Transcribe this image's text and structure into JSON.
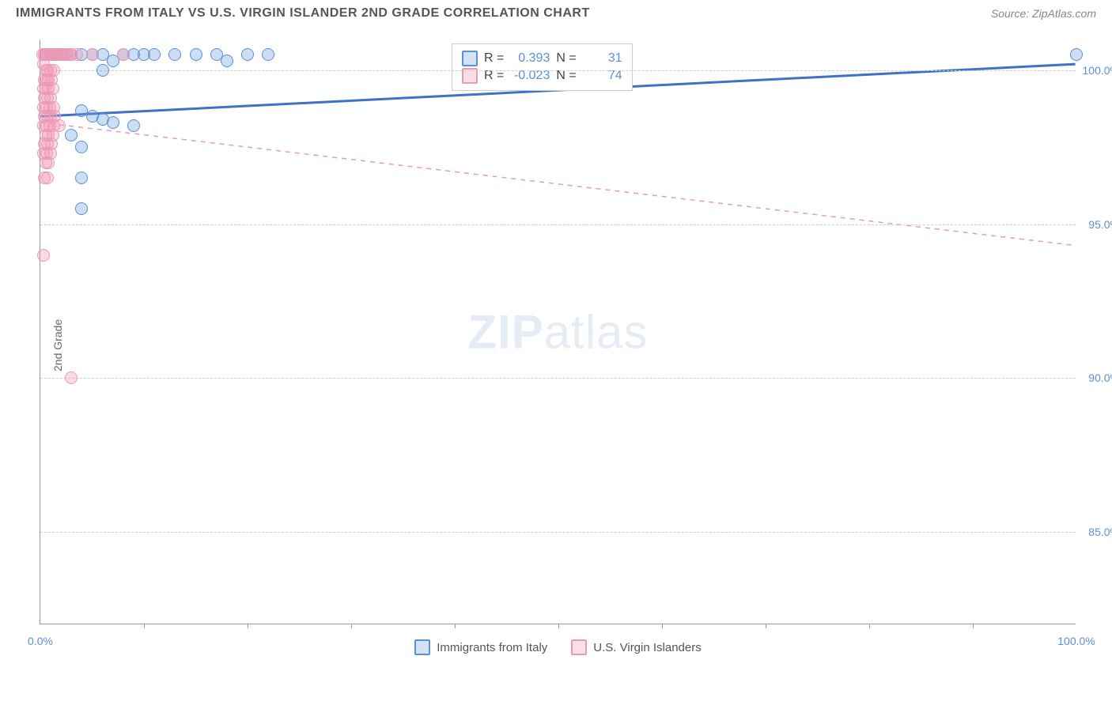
{
  "header": {
    "title": "IMMIGRANTS FROM ITALY VS U.S. VIRGIN ISLANDER 2ND GRADE CORRELATION CHART",
    "source": "Source: ZipAtlas.com"
  },
  "chart": {
    "type": "scatter",
    "ylabel": "2nd Grade",
    "watermark_a": "ZIP",
    "watermark_b": "atlas",
    "background_color": "#ffffff",
    "grid_color": "#cccccc",
    "axis_color": "#999999",
    "xlim": [
      0,
      100
    ],
    "ylim": [
      82,
      101
    ],
    "yticks": [
      {
        "v": 100,
        "label": "100.0%"
      },
      {
        "v": 95,
        "label": "95.0%"
      },
      {
        "v": 90,
        "label": "90.0%"
      },
      {
        "v": 85,
        "label": "85.0%"
      }
    ],
    "xticks_minor": [
      10,
      20,
      30,
      40,
      50,
      60,
      70,
      80,
      90
    ],
    "xtick_labels": [
      {
        "v": 0,
        "label": "0.0%"
      },
      {
        "v": 100,
        "label": "100.0%"
      }
    ],
    "series": [
      {
        "name": "Immigrants from Italy",
        "color_fill": "rgba(108,160,220,0.35)",
        "color_stroke": "#5b8fd6",
        "marker": "circle",
        "marker_size": 16,
        "R": "0.393",
        "N": "31",
        "trend": {
          "x1": 0,
          "y1": 98.5,
          "x2": 100,
          "y2": 100.2,
          "dash": false,
          "stroke": "#3d73c7",
          "width": 3
        },
        "points": [
          [
            0.5,
            100.5
          ],
          [
            1,
            100.5
          ],
          [
            1.5,
            100.5
          ],
          [
            2,
            100.5
          ],
          [
            3,
            100.5
          ],
          [
            4,
            100.5
          ],
          [
            5,
            100.5
          ],
          [
            6,
            100.5
          ],
          [
            7,
            100.3
          ],
          [
            8,
            100.5
          ],
          [
            9,
            100.5
          ],
          [
            10,
            100.5
          ],
          [
            11,
            100.5
          ],
          [
            13,
            100.5
          ],
          [
            15,
            100.5
          ],
          [
            17,
            100.5
          ],
          [
            18,
            100.3
          ],
          [
            20,
            100.5
          ],
          [
            22,
            100.5
          ],
          [
            6,
            100.0
          ],
          [
            4,
            98.7
          ],
          [
            5,
            98.5
          ],
          [
            6,
            98.4
          ],
          [
            7,
            98.3
          ],
          [
            9,
            98.2
          ],
          [
            3,
            97.9
          ],
          [
            4,
            97.5
          ],
          [
            4,
            96.5
          ],
          [
            4,
            95.5
          ],
          [
            100,
            100.5
          ]
        ]
      },
      {
        "name": "U.S. Virgin Islanders",
        "color_fill": "rgba(240,150,180,0.35)",
        "color_stroke": "#e89ab5",
        "marker": "circle",
        "marker_size": 16,
        "R": "-0.023",
        "N": "74",
        "trend": {
          "x1": 0,
          "y1": 98.3,
          "x2": 100,
          "y2": 94.3,
          "dash": true,
          "stroke": "#e89ab5",
          "width": 1.5
        },
        "points": [
          [
            0.2,
            100.5
          ],
          [
            0.4,
            100.5
          ],
          [
            0.6,
            100.5
          ],
          [
            0.8,
            100.5
          ],
          [
            1,
            100.5
          ],
          [
            1.2,
            100.5
          ],
          [
            1.4,
            100.5
          ],
          [
            1.6,
            100.5
          ],
          [
            1.8,
            100.5
          ],
          [
            2,
            100.5
          ],
          [
            2.2,
            100.5
          ],
          [
            2.4,
            100.5
          ],
          [
            2.6,
            100.5
          ],
          [
            3,
            100.5
          ],
          [
            3.5,
            100.5
          ],
          [
            5,
            100.5
          ],
          [
            8,
            100.5
          ],
          [
            0.3,
            100.2
          ],
          [
            0.5,
            100.0
          ],
          [
            0.7,
            100.0
          ],
          [
            1,
            100.0
          ],
          [
            1.3,
            100.0
          ],
          [
            0.4,
            99.7
          ],
          [
            0.6,
            99.7
          ],
          [
            0.8,
            99.7
          ],
          [
            1.1,
            99.7
          ],
          [
            0.3,
            99.4
          ],
          [
            0.5,
            99.4
          ],
          [
            0.8,
            99.4
          ],
          [
            1.2,
            99.4
          ],
          [
            0.4,
            99.1
          ],
          [
            0.7,
            99.1
          ],
          [
            1,
            99.1
          ],
          [
            0.3,
            98.8
          ],
          [
            0.6,
            98.8
          ],
          [
            0.9,
            98.8
          ],
          [
            1.3,
            98.8
          ],
          [
            0.4,
            98.5
          ],
          [
            0.7,
            98.5
          ],
          [
            1,
            98.5
          ],
          [
            1.4,
            98.5
          ],
          [
            0.3,
            98.2
          ],
          [
            0.6,
            98.2
          ],
          [
            0.9,
            98.2
          ],
          [
            1.3,
            98.2
          ],
          [
            1.8,
            98.2
          ],
          [
            0.5,
            97.9
          ],
          [
            0.8,
            97.9
          ],
          [
            1.2,
            97.9
          ],
          [
            0.4,
            97.6
          ],
          [
            0.7,
            97.6
          ],
          [
            1.1,
            97.6
          ],
          [
            0.3,
            97.3
          ],
          [
            0.6,
            97.3
          ],
          [
            1,
            97.3
          ],
          [
            0.5,
            97.0
          ],
          [
            0.8,
            97.0
          ],
          [
            0.4,
            96.5
          ],
          [
            0.7,
            96.5
          ],
          [
            0.3,
            94.0
          ],
          [
            3.0,
            90.0
          ]
        ]
      }
    ],
    "legend_top": {
      "R_label": "R =",
      "N_label": "N ="
    },
    "legend_bottom": [
      {
        "swatch": "blue",
        "label": "Immigrants from Italy"
      },
      {
        "swatch": "pink",
        "label": "U.S. Virgin Islanders"
      }
    ]
  }
}
